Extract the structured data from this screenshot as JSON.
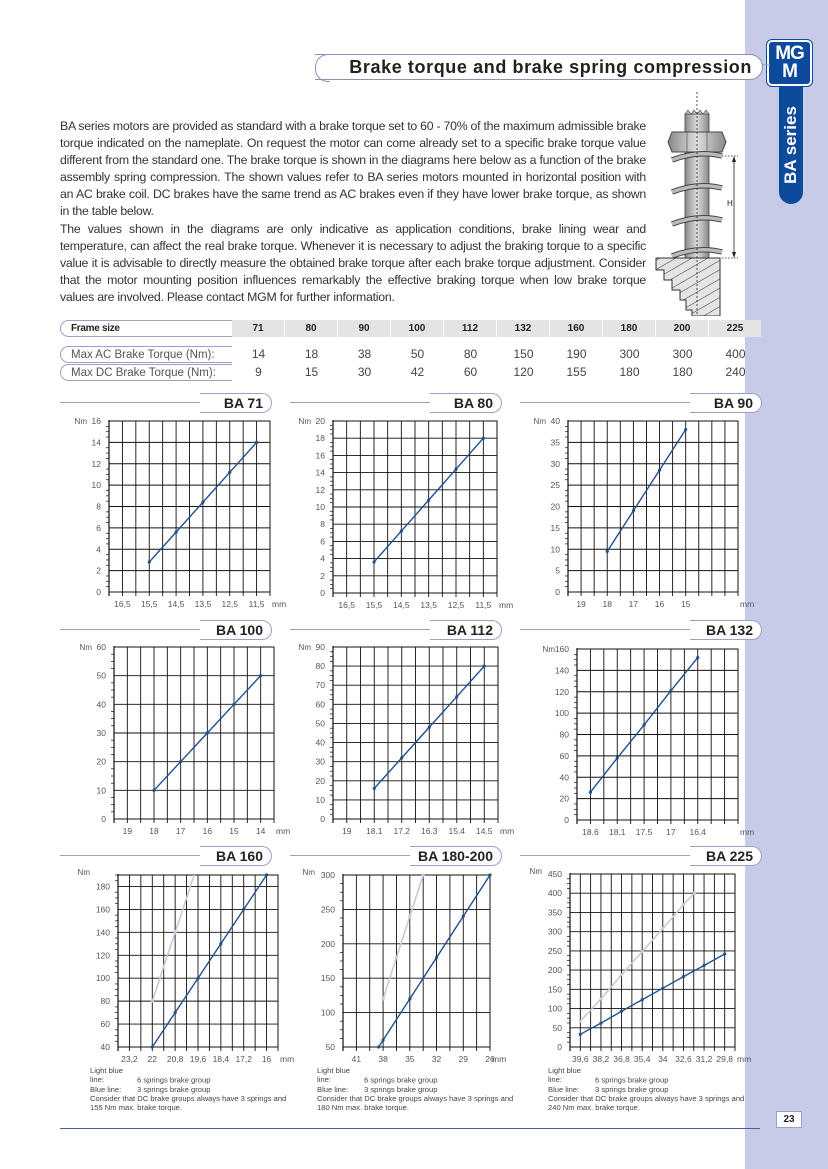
{
  "header": {
    "title": "Brake torque and brake spring compression",
    "logo_text": "MGM",
    "series_label": "BA series"
  },
  "intro": {
    "p1": "BA series motors are provided as standard with a brake torque set to 60 - 70% of the maximum admissible brake torque indicated on the nameplate. On request the motor can come already set to a specific brake torque value different from the standard one. The brake torque is shown in the diagrams here below as a function of the brake assembly spring compression. The shown values refer to BA series motors mounted in horizontal position with an AC brake coil. DC brakes have the same trend as AC brakes even if they have lower brake torque, as shown in the table below.",
    "p2": "The values shown in the diagrams are only indicative as application conditions, brake lining wear and temperature, can affect the real brake torque. Whenever it is necessary to adjust the braking torque to a specific value it is advisable to directly measure the obtained brake torque after each brake torque adjustment. Consider that the motor mounting position influences remarkably the effective braking torque when low brake torque values are involved. Please contact MGM for further information."
  },
  "figure": {
    "dimension_label": "H"
  },
  "table": {
    "header_label": "Frame size",
    "frames": [
      "71",
      "80",
      "90",
      "100",
      "112",
      "132",
      "160",
      "180",
      "200",
      "225"
    ],
    "rows": [
      {
        "label": "Max AC Brake Torque (Nm):",
        "values": [
          "14",
          "18",
          "38",
          "50",
          "80",
          "150",
          "190",
          "300",
          "300",
          "400"
        ]
      },
      {
        "label": "Max DC Brake Torque (Nm):",
        "values": [
          "9",
          "15",
          "30",
          "42",
          "60",
          "120",
          "155",
          "180",
          "180",
          "240"
        ]
      }
    ]
  },
  "colors": {
    "blue_line": "#1f4f8f",
    "light_line": "#c9c9dc",
    "brand": "#0d4a9c",
    "sidebar": "#c8cbe8"
  },
  "chart_data": [
    {
      "type": "line",
      "title": "BA 71",
      "ylabel": "Nm",
      "x_unit": "mm",
      "ylim": [
        0,
        16
      ],
      "y_grid_step": 2,
      "x_ticks": [
        "16,5",
        "15,5",
        "14,5",
        "13,5",
        "12,5",
        "11,5"
      ],
      "grid": true,
      "series": [
        {
          "values": [
            [
              15.5,
              2.8
            ],
            [
              14.5,
              5.6
            ],
            [
              13.5,
              8.4
            ],
            [
              12.5,
              11.2
            ],
            [
              11.5,
              14
            ]
          ]
        }
      ]
    },
    {
      "type": "line",
      "title": "BA 80",
      "ylabel": "Nm",
      "x_unit": "mm",
      "ylim": [
        0,
        20
      ],
      "y_grid_step": 2,
      "x_ticks": [
        "16,5",
        "15,5",
        "14,5",
        "13,5",
        "12,5",
        "11,5"
      ],
      "grid": true,
      "series": [
        {
          "values": [
            [
              15.5,
              3.6
            ],
            [
              14.5,
              7.2
            ],
            [
              13.5,
              10.8
            ],
            [
              12.5,
              14.4
            ],
            [
              11.5,
              18
            ]
          ]
        }
      ]
    },
    {
      "type": "line",
      "title": "BA 90",
      "ylabel": "Nm",
      "x_unit": "mm",
      "ylim": [
        0,
        40
      ],
      "y_grid_step": 5,
      "x_ticks": [
        "19",
        "18",
        "17",
        "16",
        "15"
      ],
      "grid": true,
      "series": [
        {
          "values": [
            [
              18,
              9.5
            ],
            [
              17,
              19
            ],
            [
              16,
              28.5
            ],
            [
              15,
              38
            ]
          ]
        }
      ]
    },
    {
      "type": "line",
      "title": "BA 100",
      "ylabel": "Nm",
      "x_unit": "mm",
      "ylim": [
        0,
        60
      ],
      "y_grid_step": 10,
      "x_ticks": [
        "19",
        "18",
        "17",
        "16",
        "15",
        "14"
      ],
      "grid": true,
      "series": [
        {
          "values": [
            [
              18,
              10
            ],
            [
              17,
              20
            ],
            [
              16,
              30
            ],
            [
              15,
              40
            ],
            [
              14,
              50
            ]
          ]
        }
      ]
    },
    {
      "type": "line",
      "title": "BA 112",
      "ylabel": "Nm",
      "x_unit": "mm",
      "ylim": [
        0,
        90
      ],
      "y_grid_step": 10,
      "x_ticks": [
        "19",
        "18.1",
        "17.2",
        "16.3",
        "15.4",
        "14.5"
      ],
      "grid": true,
      "series": [
        {
          "values": [
            [
              18.1,
              16
            ],
            [
              17.2,
              32
            ],
            [
              16.3,
              48
            ],
            [
              15.4,
              64
            ],
            [
              14.5,
              80
            ]
          ]
        }
      ]
    },
    {
      "type": "line",
      "title": "BA 132",
      "ylabel": "Nm",
      "x_unit": "mm",
      "ylim": [
        0,
        160
      ],
      "y_grid_step": 20,
      "x_ticks": [
        "18.6",
        "18.1",
        "17.5",
        "17",
        "16.4"
      ],
      "grid": true,
      "series": [
        {
          "values": [
            [
              18.6,
              26
            ],
            [
              18.1,
              58
            ],
            [
              17.5,
              89
            ],
            [
              17,
              121
            ],
            [
              16.4,
              152
            ]
          ]
        }
      ]
    },
    {
      "type": "line",
      "title": "BA 160",
      "ylabel": "Nm",
      "x_unit": "mm",
      "ylim": [
        40,
        190
      ],
      "y_grid_step": 20,
      "x_ticks": [
        "23,2",
        "22",
        "20,8",
        "19,6",
        "18,4",
        "17,2",
        "16"
      ],
      "grid": true,
      "series": [
        {
          "name": "Light blue line",
          "values": [
            [
              22,
              80
            ],
            [
              20.8,
              140
            ],
            [
              19.6,
              200
            ]
          ]
        },
        {
          "name": "Blue line",
          "values": [
            [
              22,
              40
            ],
            [
              20.8,
              70
            ],
            [
              19.6,
              100
            ],
            [
              18.4,
              130
            ],
            [
              17.2,
              160
            ],
            [
              16,
              190
            ]
          ]
        }
      ],
      "notes": {
        "light_key": "Light blue line:",
        "light_text": "6 springs brake group",
        "blue_key": "Blue line:",
        "blue_text": "3 springs brake group",
        "dc_note": "Consider that DC brake groups always have 3 springs and 155 Nm max. brake torque."
      }
    },
    {
      "type": "line",
      "title": "BA 180-200",
      "ylabel": "Nm",
      "x_unit": "mm",
      "ylim": [
        50,
        300
      ],
      "y_grid_step": 50,
      "x_ticks": [
        "41",
        "38",
        "35",
        "32",
        "29",
        "26"
      ],
      "grid": true,
      "series": [
        {
          "name": "Light blue line",
          "values": [
            [
              38,
              120
            ],
            [
              36.5,
              180
            ],
            [
              35,
              240
            ],
            [
              33.5,
              300
            ]
          ]
        },
        {
          "name": "Blue line",
          "values": [
            [
              38.5,
              50
            ],
            [
              38,
              60
            ],
            [
              35,
              120
            ],
            [
              32,
              180
            ],
            [
              29,
              240
            ],
            [
              26,
              300
            ]
          ]
        }
      ],
      "notes": {
        "light_key": "Light blue line:",
        "light_text": "6 springs brake group",
        "blue_key": "Blue line:",
        "blue_text": "3 springs brake group",
        "dc_note": "Consider that DC brake groups always have 3 springs and 180 Nm max. brake torque."
      }
    },
    {
      "type": "line",
      "title": "BA 225",
      "ylabel": "Nm",
      "x_unit": "mm",
      "ylim": [
        0,
        450
      ],
      "y_grid_step": 50,
      "x_ticks": [
        "39,6",
        "38,2",
        "36,8",
        "35,4",
        "34",
        "32,6",
        "31,2",
        "29,8"
      ],
      "grid": true,
      "series": [
        {
          "name": "Light blue line",
          "values": [
            [
              39.6,
              67
            ],
            [
              38.2,
              125
            ],
            [
              36.8,
              188
            ],
            [
              35.4,
              248
            ],
            [
              34,
              308
            ],
            [
              32.6,
              370
            ],
            [
              31.85,
              400
            ]
          ]
        },
        {
          "name": "Blue line",
          "values": [
            [
              39.6,
              33
            ],
            [
              38.2,
              62
            ],
            [
              36.8,
              93
            ],
            [
              35.4,
              123
            ],
            [
              34,
              153
            ],
            [
              32.6,
              183
            ],
            [
              31.2,
              212
            ],
            [
              29.8,
              242
            ]
          ]
        }
      ],
      "notes": {
        "light_key": "Light blue line:",
        "light_text": "6 springs brake group",
        "blue_key": "Blue line:",
        "blue_text": "3 springs brake group",
        "dc_note": "Consider that DC brake groups always have 3 springs and 240 Nm max. brake torque."
      }
    }
  ],
  "footer": {
    "page_number": "23"
  }
}
